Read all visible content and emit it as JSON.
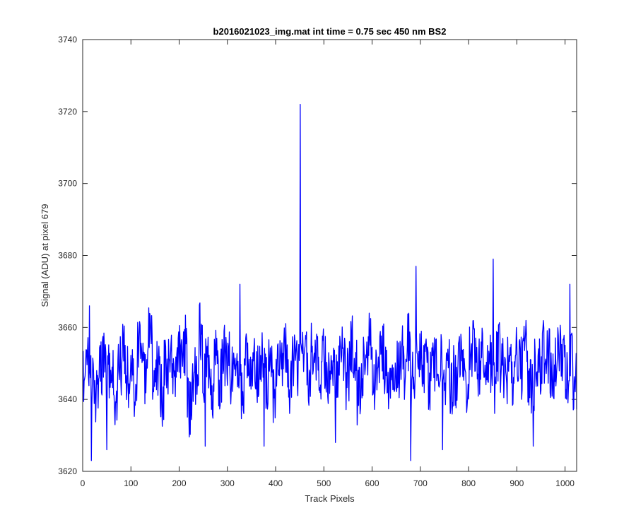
{
  "chart_data": {
    "type": "line",
    "title": "b2016021023_img.mat int time = 0.75 sec  450 nm BS2",
    "xlabel": "Track Pixels",
    "ylabel": "Signal (ADU) at pixel 679",
    "xlim": [
      0,
      1024
    ],
    "ylim": [
      3620,
      3740
    ],
    "xticks": [
      0,
      100,
      200,
      300,
      400,
      500,
      600,
      700,
      800,
      900,
      1000
    ],
    "yticks": [
      3620,
      3640,
      3660,
      3680,
      3700,
      3720,
      3740
    ],
    "xtick_labels": [
      "0",
      "100",
      "200",
      "300",
      "400",
      "500",
      "600",
      "700",
      "800",
      "900",
      "1000"
    ],
    "ytick_labels": [
      "3620",
      "3640",
      "3660",
      "3680",
      "3700",
      "3720",
      "3740"
    ],
    "grid": false,
    "line_color": "#0000ff",
    "noise_baseline": 3650,
    "noise_range": [
      3623,
      3672
    ],
    "peaks": [
      {
        "x": 451,
        "y": 3722
      },
      {
        "x": 851,
        "y": 3679
      },
      {
        "x": 691,
        "y": 3677
      },
      {
        "x": 1010,
        "y": 3672
      },
      {
        "x": 326,
        "y": 3672
      },
      {
        "x": 14,
        "y": 3666
      }
    ],
    "dips": [
      {
        "x": 680,
        "y": 3623
      },
      {
        "x": 18,
        "y": 3623
      },
      {
        "x": 50,
        "y": 3626
      },
      {
        "x": 254,
        "y": 3627
      },
      {
        "x": 746,
        "y": 3626
      },
      {
        "x": 934,
        "y": 3627
      },
      {
        "x": 376,
        "y": 3627
      },
      {
        "x": 524,
        "y": 3628
      }
    ],
    "series": [
      {
        "samples_every": 8,
        "y": [
          3646,
          3651,
          3644,
          3641,
          3648,
          3652,
          3647,
          3646,
          3641,
          3650,
          3655,
          3646,
          3648,
          3643,
          3656,
          3652,
          3647,
          3658,
          3645,
          3650,
          3641,
          3652,
          3649,
          3645,
          3653,
          3652,
          3655,
          3638,
          3643,
          3647,
          3659,
          3648,
          3651,
          3643,
          3652,
          3645,
          3652,
          3650,
          3647,
          3654,
          3651,
          3643,
          3650,
          3649,
          3651,
          3647,
          3653,
          3646,
          3654,
          3641,
          3652,
          3649,
          3656,
          3645,
          3649,
          3648,
          3651,
          3652,
          3646,
          3653,
          3651,
          3647,
          3652,
          3645,
          3651,
          3645,
          3649,
          3652,
          3646,
          3655,
          3648,
          3641,
          3649,
          3650,
          3656,
          3646,
          3651,
          3654,
          3649,
          3645,
          3651,
          3649,
          3653,
          3647,
          3655,
          3646,
          3652,
          3652,
          3650,
          3646,
          3654,
          3650,
          3651,
          3647,
          3650,
          3644,
          3646,
          3654,
          3649,
          3645,
          3652,
          3656,
          3648,
          3652,
          3651,
          3649,
          3645,
          3653,
          3649,
          3644,
          3651,
          3647,
          3654,
          3649,
          3653,
          3646,
          3645,
          3650,
          3648,
          3653,
          3651,
          3646,
          3649,
          3652,
          3654,
          3648,
          3650,
          3644,
          3650,
          3650
        ]
      }
    ]
  }
}
